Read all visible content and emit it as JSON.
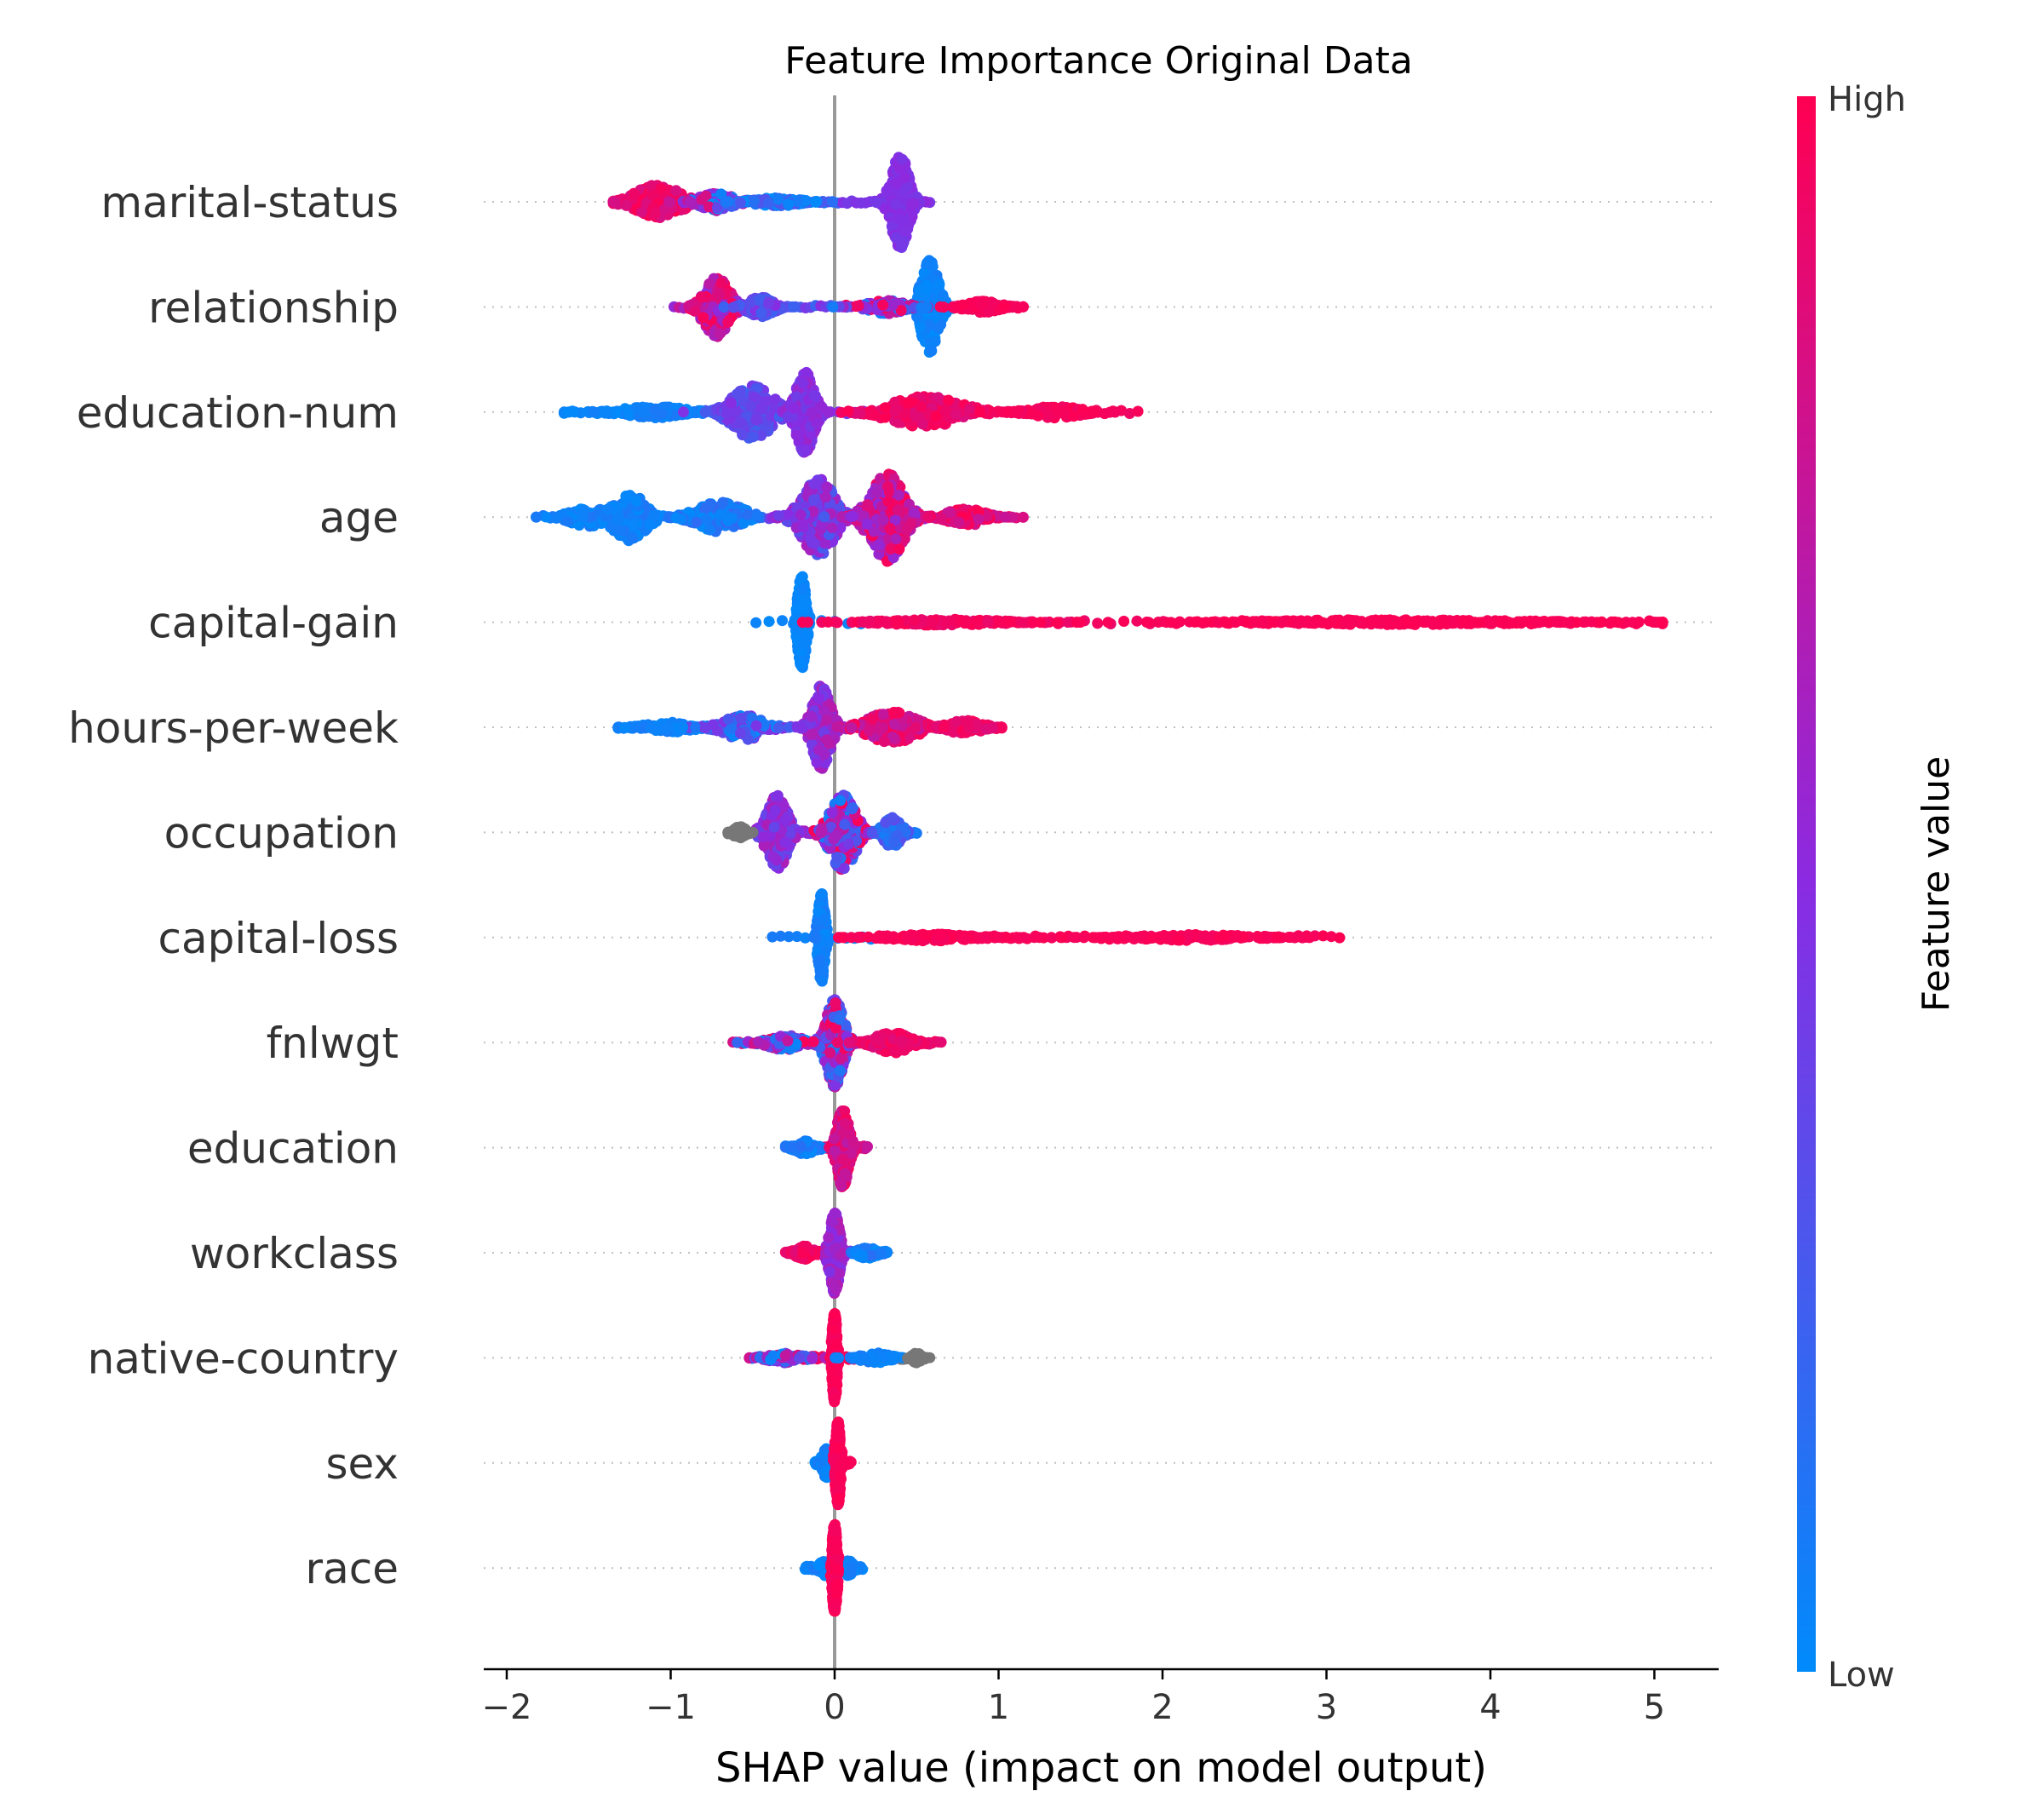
{
  "chart_data": {
    "type": "scatter",
    "subtype": "shap-beeswarm",
    "title": "Feature Importance Original Data",
    "xlabel": "SHAP value (impact on model output)",
    "xlim": [
      -2.2,
      5.4
    ],
    "xticks": [
      -2,
      -1,
      0,
      1,
      2,
      3,
      4,
      5
    ],
    "xtick_labels": [
      "−2",
      "−1",
      "0",
      "1",
      "2",
      "3",
      "4",
      "5"
    ],
    "grid": false,
    "colorbar": {
      "title": "Feature value",
      "high_label": "High",
      "low_label": "Low",
      "low_color": "#008bfb",
      "mid_color": "#8a2be2",
      "high_color": "#ff0052",
      "missing_color": "#777777"
    },
    "features": [
      {
        "name": "marital-status",
        "min": -1.35,
        "max": 0.58,
        "lobes": [
          {
            "center": -1.08,
            "width": 0.28,
            "height": 0.35,
            "cLo": 0.82,
            "cHi": 1.0
          },
          {
            "center": -0.72,
            "width": 0.2,
            "height": 0.18,
            "cLo": 0.0,
            "cHi": 0.9
          },
          {
            "center": -0.35,
            "width": 0.3,
            "height": 0.08,
            "cLo": 0.0,
            "cHi": 0.3
          },
          {
            "center": 0.4,
            "width": 0.1,
            "height": 0.95,
            "cLo": 0.42,
            "cHi": 0.52
          }
        ]
      },
      {
        "name": "relationship",
        "min": -0.98,
        "max": 1.15,
        "lobes": [
          {
            "center": -0.72,
            "width": 0.15,
            "height": 0.62,
            "cLo": 0.5,
            "cHi": 1.0
          },
          {
            "center": -0.45,
            "width": 0.15,
            "height": 0.2,
            "cLo": 0.2,
            "cHi": 0.5
          },
          {
            "center": 0.58,
            "width": 0.1,
            "height": 0.95,
            "cLo": 0.0,
            "cHi": 0.08
          },
          {
            "center": 0.32,
            "width": 0.22,
            "height": 0.14,
            "cLo": 0.0,
            "cHi": 1.0
          },
          {
            "center": 0.9,
            "width": 0.2,
            "height": 0.12,
            "cLo": 0.95,
            "cHi": 1.0
          }
        ]
      },
      {
        "name": "education-num",
        "min": -1.65,
        "max": 1.85,
        "lobes": [
          {
            "center": -1.1,
            "width": 0.4,
            "height": 0.12,
            "cLo": 0.0,
            "cHi": 0.1
          },
          {
            "center": -0.5,
            "width": 0.25,
            "height": 0.55,
            "cLo": 0.2,
            "cHi": 0.5
          },
          {
            "center": -0.18,
            "width": 0.1,
            "height": 0.85,
            "cLo": 0.4,
            "cHi": 0.6
          },
          {
            "center": 0.55,
            "width": 0.45,
            "height": 0.32,
            "cLo": 0.85,
            "cHi": 1.0
          },
          {
            "center": 1.35,
            "width": 0.3,
            "height": 0.12,
            "cLo": 0.92,
            "cHi": 1.0
          }
        ]
      },
      {
        "name": "age",
        "min": -1.82,
        "max": 1.15,
        "lobes": [
          {
            "center": -1.5,
            "width": 0.22,
            "height": 0.2,
            "cLo": 0.0,
            "cHi": 0.1
          },
          {
            "center": -1.25,
            "width": 0.2,
            "height": 0.48,
            "cLo": 0.0,
            "cHi": 0.12
          },
          {
            "center": -0.7,
            "width": 0.3,
            "height": 0.3,
            "cLo": 0.0,
            "cHi": 0.2
          },
          {
            "center": -0.1,
            "width": 0.2,
            "height": 0.78,
            "cLo": 0.25,
            "cHi": 0.65
          },
          {
            "center": 0.32,
            "width": 0.2,
            "height": 0.9,
            "cLo": 0.5,
            "cHi": 1.0
          },
          {
            "center": 0.8,
            "width": 0.22,
            "height": 0.18,
            "cLo": 0.75,
            "cHi": 1.0
          }
        ]
      },
      {
        "name": "capital-gain",
        "min": -0.48,
        "max": 5.05,
        "lobes": [
          {
            "center": -0.2,
            "width": 0.04,
            "height": 0.95,
            "cLo": 0.0,
            "cHi": 0.05
          },
          {
            "center": 0.65,
            "width": 0.7,
            "height": 0.06,
            "cLo": 0.9,
            "cHi": 1.0
          },
          {
            "center": 3.4,
            "width": 1.6,
            "height": 0.05,
            "cLo": 0.97,
            "cHi": 1.0
          }
        ]
      },
      {
        "name": "hours-per-week",
        "min": -1.32,
        "max": 1.02,
        "lobes": [
          {
            "center": -1.0,
            "width": 0.3,
            "height": 0.1,
            "cLo": 0.0,
            "cHi": 0.1
          },
          {
            "center": -0.55,
            "width": 0.25,
            "height": 0.25,
            "cLo": 0.0,
            "cHi": 0.5
          },
          {
            "center": -0.08,
            "width": 0.1,
            "height": 0.85,
            "cLo": 0.4,
            "cHi": 0.7
          },
          {
            "center": 0.35,
            "width": 0.3,
            "height": 0.32,
            "cLo": 0.7,
            "cHi": 1.0
          },
          {
            "center": 0.8,
            "width": 0.2,
            "height": 0.14,
            "cLo": 0.85,
            "cHi": 1.0
          }
        ]
      },
      {
        "name": "occupation",
        "min": -0.65,
        "max": 0.5,
        "lobes": [
          {
            "center": -0.35,
            "width": 0.12,
            "height": 0.75,
            "cLo": 0.35,
            "cHi": 0.65
          },
          {
            "center": -0.58,
            "width": 0.06,
            "height": 0.12,
            "cLo": -1,
            "cHi": -1
          },
          {
            "center": 0.05,
            "width": 0.15,
            "height": 0.78,
            "cLo": 0.05,
            "cHi": 1.0
          },
          {
            "center": 0.35,
            "width": 0.1,
            "height": 0.3,
            "cLo": 0.05,
            "cHi": 0.35
          }
        ]
      },
      {
        "name": "capital-loss",
        "min": -0.38,
        "max": 3.08,
        "lobes": [
          {
            "center": -0.08,
            "width": 0.03,
            "height": 0.9,
            "cLo": 0.0,
            "cHi": 0.1
          },
          {
            "center": 0.6,
            "width": 0.5,
            "height": 0.07,
            "cLo": 0.95,
            "cHi": 1.0
          },
          {
            "center": 2.2,
            "width": 0.7,
            "height": 0.06,
            "cLo": 0.95,
            "cHi": 1.0
          }
        ]
      },
      {
        "name": "fnlwgt",
        "min": -0.62,
        "max": 0.65,
        "lobes": [
          {
            "center": -0.3,
            "width": 0.2,
            "height": 0.15,
            "cLo": 0.0,
            "cHi": 1.0
          },
          {
            "center": 0.0,
            "width": 0.1,
            "height": 0.9,
            "cLo": 0.1,
            "cHi": 1.0
          },
          {
            "center": 0.35,
            "width": 0.2,
            "height": 0.22,
            "cLo": 0.85,
            "cHi": 1.0
          }
        ]
      },
      {
        "name": "education",
        "min": -0.3,
        "max": 0.2,
        "lobes": [
          {
            "center": -0.18,
            "width": 0.1,
            "height": 0.14,
            "cLo": 0.0,
            "cHi": 0.15
          },
          {
            "center": 0.05,
            "width": 0.06,
            "height": 0.82,
            "cLo": 0.7,
            "cHi": 1.0
          }
        ]
      },
      {
        "name": "workclass",
        "min": -0.3,
        "max": 0.32,
        "lobes": [
          {
            "center": -0.18,
            "width": 0.1,
            "height": 0.14,
            "cLo": 0.85,
            "cHi": 1.0
          },
          {
            "center": 0.0,
            "width": 0.05,
            "height": 0.82,
            "cLo": 0.45,
            "cHi": 0.7
          },
          {
            "center": 0.2,
            "width": 0.1,
            "height": 0.12,
            "cLo": 0.0,
            "cHi": 0.15
          }
        ]
      },
      {
        "name": "native-country",
        "min": -0.52,
        "max": 0.58,
        "lobes": [
          {
            "center": -0.3,
            "width": 0.2,
            "height": 0.1,
            "cLo": 0.0,
            "cHi": 0.9
          },
          {
            "center": 0.0,
            "width": 0.02,
            "height": 0.9,
            "cLo": 0.95,
            "cHi": 1.0
          },
          {
            "center": 0.25,
            "width": 0.18,
            "height": 0.1,
            "cLo": 0.0,
            "cHi": 0.1
          },
          {
            "center": 0.5,
            "width": 0.04,
            "height": 0.1,
            "cLo": -1,
            "cHi": -1
          }
        ]
      },
      {
        "name": "sex",
        "min": -0.12,
        "max": 0.1,
        "lobes": [
          {
            "center": -0.05,
            "width": 0.04,
            "height": 0.3,
            "cLo": 0.0,
            "cHi": 0.1
          },
          {
            "center": 0.02,
            "width": 0.02,
            "height": 0.85,
            "cLo": 0.95,
            "cHi": 1.0
          }
        ]
      },
      {
        "name": "race",
        "min": -0.18,
        "max": 0.17,
        "lobes": [
          {
            "center": -0.05,
            "width": 0.08,
            "height": 0.16,
            "cLo": 0.0,
            "cHi": 0.1
          },
          {
            "center": 0.08,
            "width": 0.06,
            "height": 0.16,
            "cLo": 0.0,
            "cHi": 0.1
          },
          {
            "center": 0.0,
            "width": 0.02,
            "height": 0.9,
            "cLo": 0.95,
            "cHi": 1.0
          }
        ]
      }
    ]
  }
}
